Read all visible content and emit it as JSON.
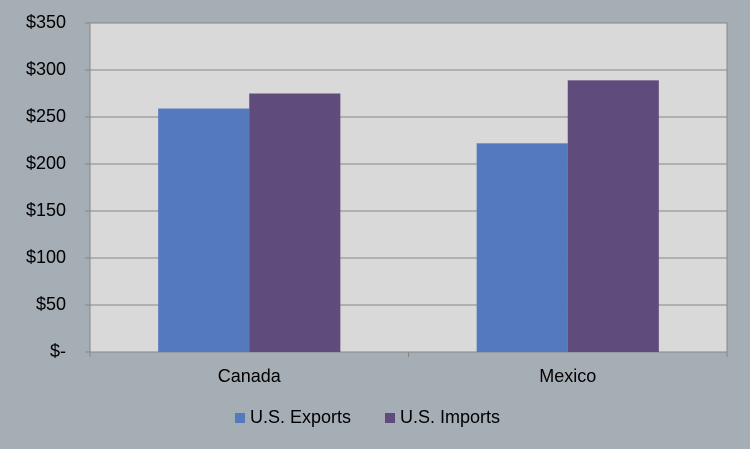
{
  "chart_data": {
    "type": "bar",
    "categories": [
      "Canada",
      "Mexico"
    ],
    "series": [
      {
        "name": "U.S. Exports",
        "color": "#5479bd",
        "values": [
          259,
          222
        ]
      },
      {
        "name": "U.S. Imports",
        "color": "#5f4b7c",
        "values": [
          275,
          289
        ]
      }
    ],
    "ylim": [
      0,
      350
    ],
    "yticks": [
      {
        "value": 0,
        "label": "$-"
      },
      {
        "value": 50,
        "label": "$50"
      },
      {
        "value": 100,
        "label": "$100"
      },
      {
        "value": 150,
        "label": "$150"
      },
      {
        "value": 200,
        "label": "$200"
      },
      {
        "value": 250,
        "label": "$250"
      },
      {
        "value": 300,
        "label": "$300"
      },
      {
        "value": 350,
        "label": "$350"
      }
    ],
    "grid": true,
    "legend": "bottom"
  }
}
